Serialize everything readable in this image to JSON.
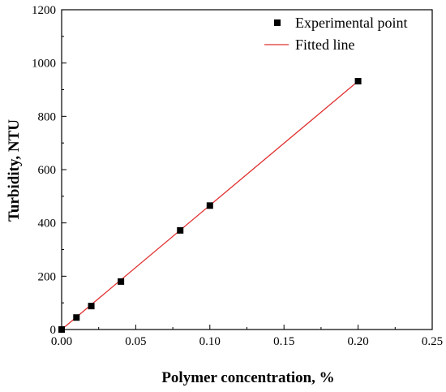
{
  "chart_data": {
    "type": "scatter",
    "title": "",
    "xlabel": "Polymer concentration, %",
    "ylabel": "Turbidity, NTU",
    "xlim": [
      0,
      0.25
    ],
    "ylim": [
      0,
      1200
    ],
    "x_ticks": [
      "0.00",
      "0.05",
      "0.10",
      "0.15",
      "0.20",
      "0.25"
    ],
    "y_ticks": [
      "0",
      "200",
      "400",
      "600",
      "800",
      "1000",
      "1200"
    ],
    "grid": false,
    "legend_position": "top-right",
    "series": [
      {
        "name": "Experimental point",
        "style": "square-markers",
        "color": "#000000",
        "x": [
          0.0,
          0.01,
          0.02,
          0.04,
          0.08,
          0.1,
          0.2
        ],
        "y": [
          0,
          45,
          88,
          180,
          372,
          465,
          932
        ]
      },
      {
        "name": "Fitted line",
        "style": "line",
        "color": "#e03030",
        "x": [
          0.0,
          0.2
        ],
        "y": [
          0,
          932
        ]
      }
    ]
  }
}
